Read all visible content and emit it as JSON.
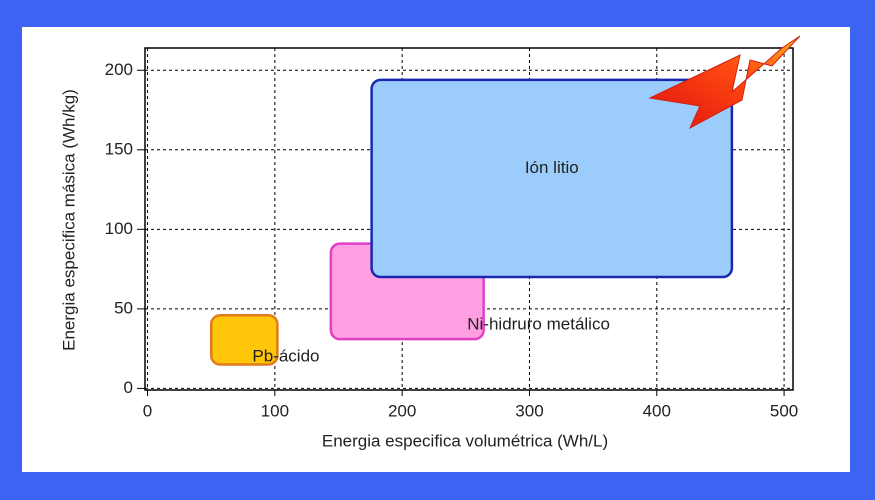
{
  "chart_data": {
    "type": "range-region",
    "x_label": "Energia especifica volumétrica (Wh/L)",
    "y_label": "Energia especifica másica (Wh/kg)",
    "xlim": [
      -2,
      507
    ],
    "ylim": [
      -1,
      214
    ],
    "xticks": [
      0,
      100,
      200,
      300,
      400,
      500
    ],
    "yticks": [
      0,
      50,
      100,
      150,
      200
    ],
    "grid": true,
    "series": [
      {
        "name": "Pb-ácido",
        "color": "#ffc60a",
        "xrange": [
          50,
          102
        ],
        "yrange": [
          15,
          46
        ]
      },
      {
        "name": "Ni-hidruro metálico",
        "color": "#ff9ee0",
        "xrange": [
          144,
          264
        ],
        "yrange": [
          31,
          91
        ]
      },
      {
        "name": "Ión litio",
        "color": "#9cccfb",
        "xrange": [
          176,
          459
        ],
        "yrange": [
          70,
          194
        ]
      }
    ]
  }
}
